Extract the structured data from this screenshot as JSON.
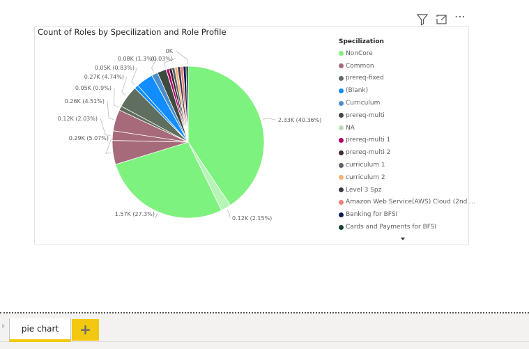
{
  "header": {
    "icons": [
      "filter-icon",
      "focus-mode-icon",
      "more-options-icon"
    ],
    "more_label": "⋯"
  },
  "chart_data": {
    "type": "pie",
    "title": "Count of Roles by Specilization and Role Profile",
    "legend": {
      "title": "Specilization",
      "placement": "right",
      "items": [
        {
          "name": "NonCore",
          "color": "#7ef27e"
        },
        {
          "name": "Common",
          "color": "#a66a7a"
        },
        {
          "name": "prereq-fixed",
          "color": "#5f6e5f"
        },
        {
          "name": "(Blank)",
          "color": "#118dff"
        },
        {
          "name": "Curriculum",
          "color": "#4a8fcc"
        },
        {
          "name": "prereq-multi",
          "color": "#3f4a3f"
        },
        {
          "name": "NA",
          "color": "#b9dcb9"
        },
        {
          "name": "prereq-multi 1",
          "color": "#b3006b"
        },
        {
          "name": "prereq-multi 2",
          "color": "#3f2a33"
        },
        {
          "name": "curriculum 1",
          "color": "#5c6068"
        },
        {
          "name": "curriculum 2",
          "color": "#f6b27a"
        },
        {
          "name": "Level 3 Spz",
          "color": "#3c3a47"
        },
        {
          "name": "Amazon Web Service(AWS) Cloud (2nd ...",
          "color": "#f07c7c"
        },
        {
          "name": "Banking for BFSI",
          "color": "#0b1d4f"
        },
        {
          "name": "Cards and Payments for BFSI",
          "color": "#123e36"
        }
      ]
    },
    "slices": [
      {
        "category": "NonCore",
        "value_k": 2.33,
        "percent": 40.36,
        "label": "2.33K (40.36%)"
      },
      {
        "category": "NonCore",
        "value_k": 0.12,
        "percent": 2.15,
        "label": "0.12K (2.15%)",
        "color": "#b7f5b7"
      },
      {
        "category": "NonCore",
        "value_k": 1.57,
        "percent": 27.3,
        "label": "1.57K (27.3%)"
      },
      {
        "category": "Common",
        "value_k": 0.29,
        "percent": 5.07,
        "label": "0.29K (5.07%)"
      },
      {
        "category": "Common",
        "value_k": 0.12,
        "percent": 2.03,
        "label": "0.12K (2.03%)"
      },
      {
        "category": "Common",
        "value_k": 0.26,
        "percent": 4.51,
        "label": "0.26K (4.51%)"
      },
      {
        "category": "prereq-fixed",
        "value_k": 0.05,
        "percent": 0.9,
        "label": "0.05K (0.9%)"
      },
      {
        "category": "prereq-fixed",
        "value_k": 0.27,
        "percent": 4.74,
        "label": "0.27K (4.74%)"
      },
      {
        "category": "(Blank)",
        "value_k": 0.05,
        "percent": 0.83,
        "label": "0.05K (0.83%)"
      },
      {
        "category": "(Blank)",
        "percent": 3.6,
        "label": ""
      },
      {
        "category": "Curriculum",
        "value_k": 0.08,
        "percent": 1.3,
        "label": "0.08K (1.3%)"
      },
      {
        "category": "prereq-multi",
        "percent": 1.9,
        "label": ""
      },
      {
        "category": "NA",
        "percent": 0.03,
        "label": "(0.03%)"
      },
      {
        "category": "prereq-multi 1",
        "percent": 0.6,
        "label": ""
      },
      {
        "category": "prereq-multi 2",
        "percent": 0.6,
        "label": ""
      },
      {
        "category": "curriculum 1",
        "percent": 0.6,
        "label": ""
      },
      {
        "category": "curriculum 2",
        "percent": 0.6,
        "label": ""
      },
      {
        "category": "Level 3 Spz",
        "percent": 0.6,
        "label": ""
      },
      {
        "category": "Amazon Web Service(AWS) Cloud (2nd ...",
        "percent": 0.6,
        "label": ""
      },
      {
        "category": "Banking for BFSI",
        "percent": 0.6,
        "label": ""
      },
      {
        "category": "Cards and Payments for BFSI",
        "percent": 0.45,
        "label": "0K"
      }
    ]
  },
  "tabs": [
    {
      "label": "pie chart",
      "active": true
    }
  ],
  "add_tab_label": "+"
}
